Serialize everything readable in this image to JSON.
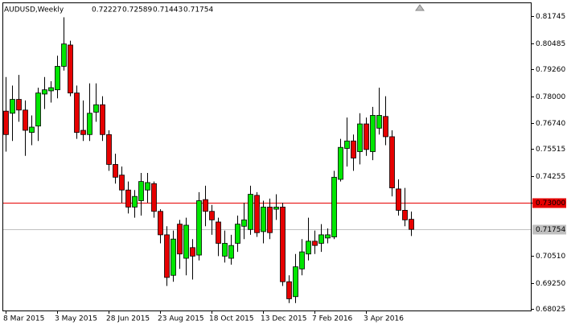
{
  "chart_data": {
    "type": "candlestick",
    "title": "AUDUSD,Weekly",
    "categories": [
      "8 Mar 2015",
      null,
      null,
      null,
      null,
      null,
      null,
      null,
      "3 May 2015",
      null,
      null,
      null,
      null,
      null,
      null,
      null,
      "28 Jun 2015",
      null,
      null,
      null,
      null,
      null,
      null,
      null,
      "23 Aug 2015",
      null,
      null,
      null,
      null,
      null,
      null,
      null,
      "18 Oct 2015",
      null,
      null,
      null,
      null,
      null,
      null,
      null,
      "13 Dec 2015",
      null,
      null,
      null,
      null,
      null,
      null,
      null,
      "7 Feb 2016",
      null,
      null,
      null,
      null,
      null,
      null,
      null,
      "3 Apr 2016",
      null,
      null,
      null,
      null,
      null,
      null,
      null
    ],
    "open": [
      0.773,
      0.772,
      0.7785,
      0.7735,
      0.763,
      0.766,
      0.781,
      0.7825,
      0.783,
      0.794,
      0.804,
      0.7815,
      0.764,
      0.762,
      0.7725,
      0.776,
      0.762,
      0.748,
      0.743,
      0.736,
      0.728,
      0.731,
      0.736,
      0.739,
      0.726,
      0.715,
      0.696,
      0.72,
      0.704,
      0.709,
      0.7055,
      0.7315,
      0.726,
      0.721,
      0.705,
      0.704,
      0.711,
      0.719,
      0.7175,
      0.7335,
      0.7165,
      0.728,
      0.727,
      0.728,
      0.693,
      0.686,
      0.699,
      0.706,
      0.712,
      0.711,
      0.7135,
      0.714,
      0.741,
      0.7555,
      0.759,
      0.754,
      0.767,
      0.754,
      0.765,
      0.7705,
      0.761,
      0.7365,
      0.7265,
      0.72227
    ],
    "high": [
      0.789,
      0.785,
      0.79,
      0.778,
      0.771,
      0.784,
      0.789,
      0.787,
      0.799,
      0.817,
      0.806,
      0.785,
      0.778,
      0.786,
      0.786,
      0.78,
      0.764,
      0.753,
      0.747,
      0.74,
      0.736,
      0.744,
      0.744,
      0.74,
      0.727,
      0.719,
      0.717,
      0.722,
      0.723,
      0.713,
      0.735,
      0.738,
      0.729,
      0.723,
      0.717,
      0.715,
      0.724,
      0.73,
      0.738,
      0.735,
      0.731,
      0.732,
      0.734,
      0.73,
      0.696,
      0.706,
      0.713,
      0.723,
      0.717,
      0.72,
      0.718,
      0.745,
      0.76,
      0.77,
      0.762,
      0.772,
      0.77,
      0.775,
      0.784,
      0.78,
      0.764,
      0.741,
      0.737,
      0.72589
    ],
    "low": [
      0.754,
      0.759,
      0.768,
      0.752,
      0.757,
      0.759,
      0.774,
      0.777,
      0.779,
      0.792,
      0.78,
      0.76,
      0.759,
      0.759,
      0.768,
      0.759,
      0.745,
      0.739,
      0.73,
      0.725,
      0.723,
      0.724,
      0.73,
      0.723,
      0.711,
      0.691,
      0.693,
      0.699,
      0.696,
      0.694,
      0.703,
      0.719,
      0.715,
      0.705,
      0.702,
      0.701,
      0.707,
      0.713,
      0.715,
      0.714,
      0.711,
      0.713,
      0.722,
      0.691,
      0.683,
      0.683,
      0.696,
      0.703,
      0.706,
      0.707,
      0.711,
      0.713,
      0.74,
      0.747,
      0.745,
      0.748,
      0.752,
      0.75,
      0.762,
      0.757,
      0.733,
      0.724,
      0.719,
      0.71443
    ],
    "close": [
      0.762,
      0.7785,
      0.7735,
      0.764,
      0.7655,
      0.7815,
      0.783,
      0.784,
      0.794,
      0.8045,
      0.7815,
      0.763,
      0.762,
      0.772,
      0.776,
      0.762,
      0.748,
      0.742,
      0.736,
      0.728,
      0.733,
      0.74,
      0.7395,
      0.726,
      0.715,
      0.695,
      0.713,
      0.706,
      0.7195,
      0.705,
      0.731,
      0.726,
      0.722,
      0.711,
      0.711,
      0.71,
      0.72,
      0.722,
      0.734,
      0.716,
      0.728,
      0.716,
      0.728,
      0.693,
      0.685,
      0.7,
      0.707,
      0.712,
      0.71,
      0.715,
      0.715,
      0.742,
      0.756,
      0.759,
      0.751,
      0.767,
      0.755,
      0.771,
      0.771,
      0.761,
      0.737,
      0.7265,
      0.722,
      0.71754
    ],
    "up_color": "#00e600",
    "down_color": "#e60000",
    "ylim": [
      0.6795,
      0.8236
    ],
    "yticks": [
      0.81745,
      0.80485,
      {
        "value": 0.7926,
        "label": "0.79260"
      },
      {
        "value": 0.78,
        "label": "0.78000"
      },
      {
        "value": 0.7674,
        "label": "0.76740"
      },
      0.75515,
      0.74255,
      {
        "value": 0.73,
        "label": "0.73000"
      },
      {
        "value": 0.7051,
        "label": "0.70510"
      },
      {
        "value": 0.6925,
        "label": "0.69250"
      },
      0.68025
    ],
    "hline": {
      "value": 0.73,
      "color": "#e60000"
    },
    "price_line_color": "#c0c0c0"
  }
}
